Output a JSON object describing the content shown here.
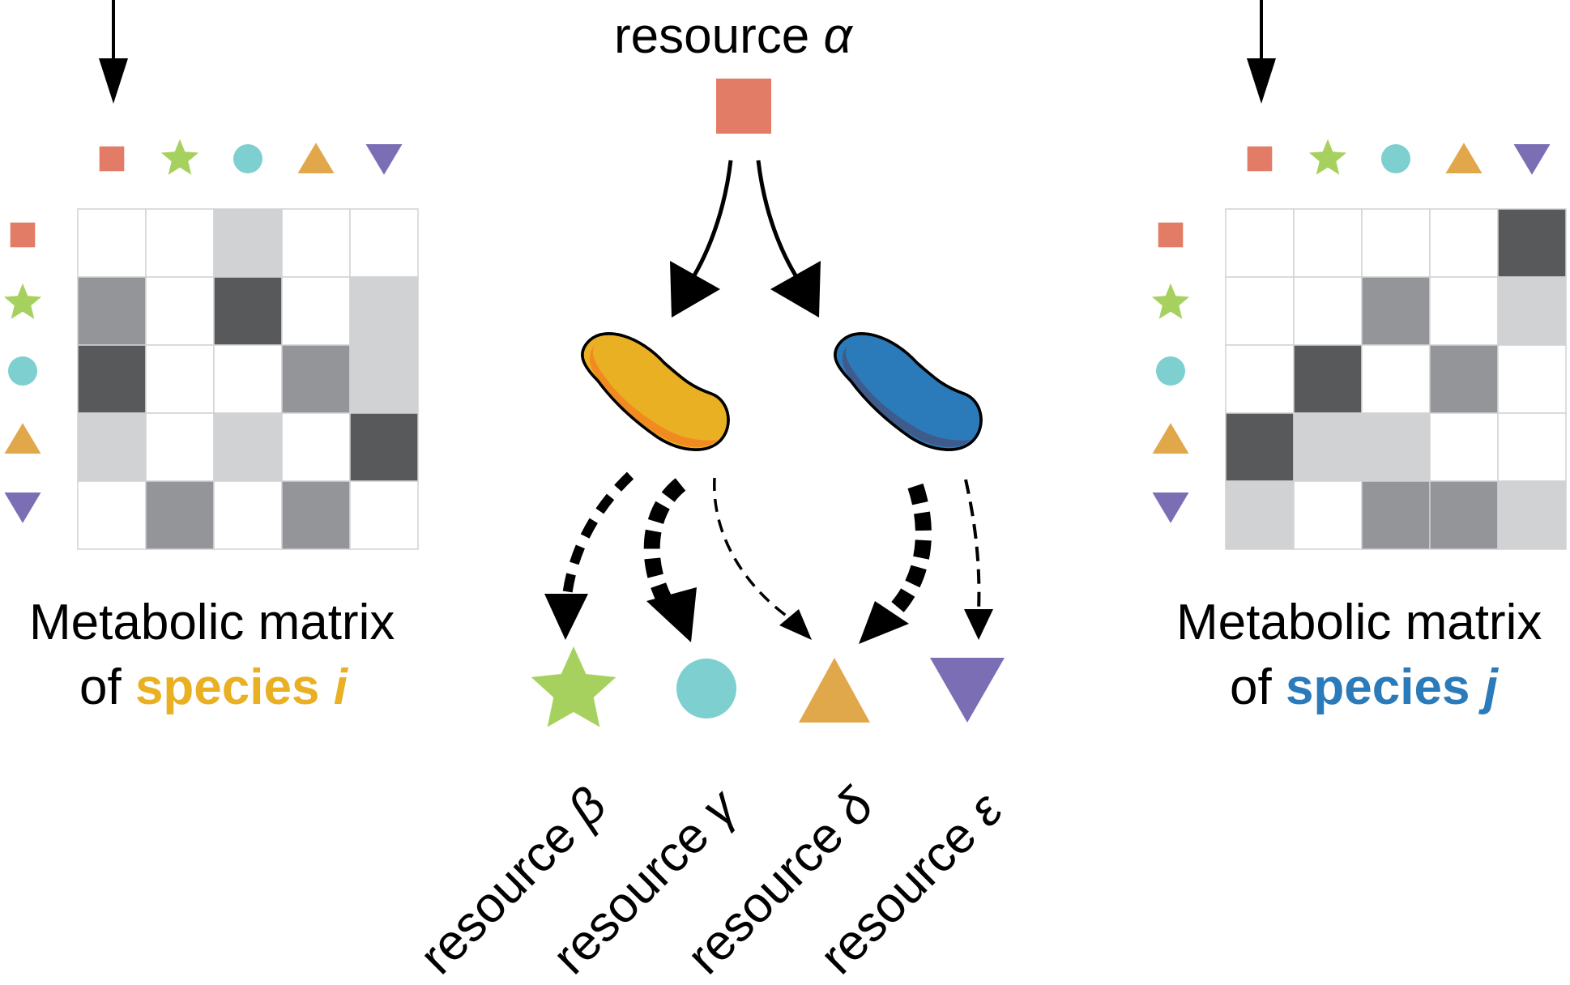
{
  "colors": {
    "square": "#E27C66",
    "star": "#A6D15F",
    "circle": "#7ECFCF",
    "triangle": "#E1A74B",
    "inverted_triangle": "#7B6EB5",
    "species_i": "#EAB024",
    "species_j": "#2B7BBA",
    "cell_white": "#FFFFFF",
    "cell_light": "#D1D2D4",
    "cell_mid": "#939598",
    "cell_dark": "#58595B",
    "grid_line": "#D1D2D4"
  },
  "top_resource": {
    "name": "resource",
    "symbol": "α",
    "icon": "square"
  },
  "product_resources": [
    {
      "name": "resource",
      "symbol": "β",
      "icon": "star"
    },
    {
      "name": "resource",
      "symbol": "γ",
      "icon": "circle"
    },
    {
      "name": "resource",
      "symbol": "δ",
      "icon": "triangle"
    },
    {
      "name": "resource",
      "symbol": "ε",
      "icon": "inverted_triangle"
    }
  ],
  "resource_icons_order": [
    "square",
    "star",
    "circle",
    "triangle",
    "inverted_triangle"
  ],
  "matrix_i": {
    "line1": "Metabolic matrix",
    "of": "of",
    "species_word": "species",
    "species_symbol": "i",
    "cells": [
      [
        0,
        0,
        1,
        0,
        0
      ],
      [
        2,
        0,
        3,
        0,
        1
      ],
      [
        3,
        0,
        0,
        2,
        1
      ],
      [
        1,
        0,
        1,
        0,
        3
      ],
      [
        0,
        2,
        0,
        2,
        0
      ]
    ]
  },
  "matrix_j": {
    "line1": "Metabolic matrix",
    "of": "of",
    "species_word": "species",
    "species_symbol": "j",
    "cells": [
      [
        0,
        0,
        0,
        0,
        3
      ],
      [
        0,
        0,
        2,
        0,
        1
      ],
      [
        0,
        3,
        0,
        2,
        0
      ],
      [
        3,
        1,
        1,
        0,
        0
      ],
      [
        1,
        0,
        2,
        2,
        1
      ]
    ]
  }
}
